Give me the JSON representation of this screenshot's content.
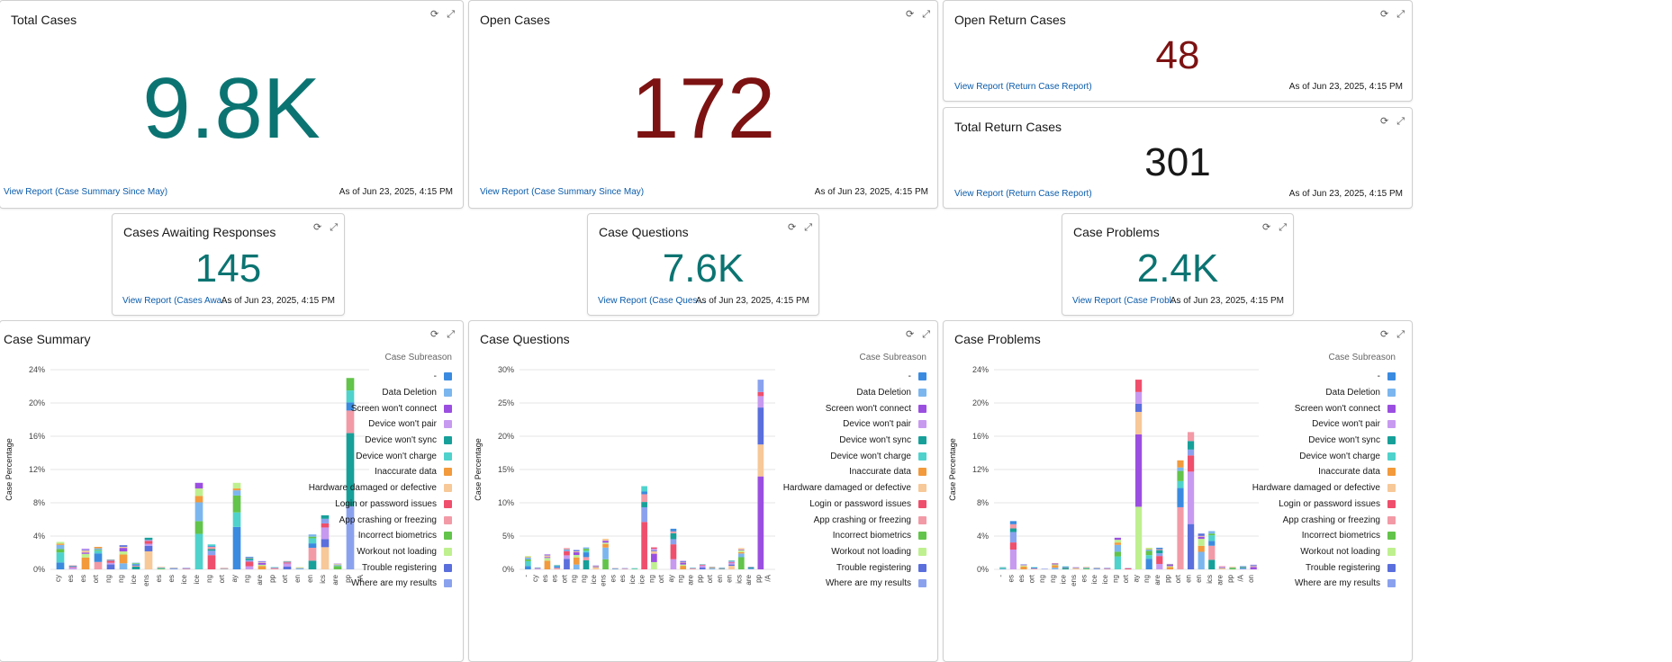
{
  "cards": {
    "total": {
      "title": "Total Cases",
      "value": "9.8K",
      "link": "View Report (Case Summary Since May)",
      "asof": "As of Jun 23, 2025, 4:15 PM"
    },
    "open": {
      "title": "Open Cases",
      "value": "172",
      "link": "View Report (Case Summary Since May)",
      "asof": "As of Jun 23, 2025, 4:15 PM"
    },
    "open_return": {
      "title": "Open Return Cases",
      "value": "48",
      "link": "View Report (Return Case Report)",
      "asof": "As of Jun 23, 2025, 4:15 PM"
    },
    "total_return": {
      "title": "Total Return Cases",
      "value": "301",
      "link": "View Report (Return Case Report)",
      "asof": "As of Jun 23, 2025, 4:15 PM"
    },
    "awaiting": {
      "title": "Cases Awaiting Responses",
      "value": "145",
      "link": "View Report (Cases Awaiting ...",
      "asof": "As of Jun 23, 2025, 4:15 PM"
    },
    "questions": {
      "title": "Case Questions",
      "value": "7.6K",
      "link": "View Report (Case Questions ...",
      "asof": "As of Jun 23, 2025, 4:15 PM"
    },
    "problems": {
      "title": "Case Problems",
      "value": "2.4K",
      "link": "View Report (Case Problems ...",
      "asof": "As of Jun 23, 2025, 4:15 PM"
    }
  },
  "icons": {
    "refresh": "refresh-icon",
    "expand": "expand-icon"
  },
  "colors": {
    "teal": "#0b7472",
    "darkred": "#7d1212",
    "black": "#181818",
    "link": "#0b5cab"
  },
  "legend": {
    "title": "Case Subreason",
    "items": [
      {
        "label": "-",
        "color": "#3a8be0"
      },
      {
        "label": "Data Deletion",
        "color": "#7cb6ee"
      },
      {
        "label": "Screen won't connect",
        "color": "#9b4fe0"
      },
      {
        "label": "Device won't pair",
        "color": "#c79af0"
      },
      {
        "label": "Device won't sync",
        "color": "#17a09a"
      },
      {
        "label": "Device won't charge",
        "color": "#4fd2cc"
      },
      {
        "label": "Inaccurate data",
        "color": "#f29a3c"
      },
      {
        "label": "Hardware damaged or defective",
        "color": "#f7c898"
      },
      {
        "label": "Login or password issues",
        "color": "#ef4f6c"
      },
      {
        "label": "App crashing or freezing",
        "color": "#f29aa6"
      },
      {
        "label": "Incorrect biometrics",
        "color": "#62c44a"
      },
      {
        "label": "Workout not loading",
        "color": "#bff08f"
      },
      {
        "label": "Trouble registering",
        "color": "#5a6fdc"
      },
      {
        "label": "Where are my results",
        "color": "#8aa2ee"
      }
    ]
  },
  "chart_data": [
    {
      "type": "bar",
      "title": "Case Summary",
      "ylabel": "Case Percentage",
      "ylim": [
        0,
        24
      ],
      "yticks": [
        "0%",
        "4%",
        "8%",
        "12%",
        "16%",
        "20%",
        "24%"
      ],
      "categories": [
        "cy",
        "es",
        "es",
        "ort",
        "ng",
        "ng",
        "ice",
        "ens",
        "es",
        "es",
        "ice",
        "ice",
        "ng",
        "ort",
        "ay",
        "ng",
        "are",
        "pp",
        "ort",
        "en",
        "en",
        "ics",
        "are",
        "pp",
        "/A"
      ],
      "totals": [
        3.3,
        0.5,
        2.5,
        2.7,
        1.2,
        2.9,
        0.8,
        3.8,
        0.3,
        0.2,
        0.2,
        10.4,
        3.0,
        0.2,
        10.4,
        1.5,
        1.0,
        0.3,
        1.0,
        0.3,
        4.2,
        6.5,
        0.7,
        23.0,
        0
      ]
    },
    {
      "type": "bar",
      "title": "Case Questions",
      "ylabel": "Case Percentage",
      "ylim": [
        0,
        30
      ],
      "yticks": [
        "0%",
        "5%",
        "10%",
        "15%",
        "20%",
        "25%",
        "30%"
      ],
      "categories": [
        "-",
        "cy",
        "es",
        "es",
        "ort",
        "ng",
        "ng",
        "ice",
        "ens",
        "es",
        "es",
        "ice",
        "ice",
        "ng",
        "ort",
        "ay",
        "ng",
        "are",
        "pp",
        "ort",
        "en",
        "en",
        "ics",
        "are",
        "pp",
        "/A"
      ],
      "totals": [
        2.0,
        0.3,
        2.3,
        0.7,
        3.2,
        2.9,
        3.3,
        0.6,
        4.6,
        0.2,
        0.2,
        0.2,
        12.5,
        3.3,
        0,
        6.1,
        1.3,
        0.3,
        0.8,
        0.4,
        0.3,
        1.3,
        3.2,
        0.4,
        28.5,
        0
      ]
    },
    {
      "type": "bar",
      "title": "Case Problems",
      "ylabel": "Case Percentage",
      "ylim": [
        0,
        24
      ],
      "yticks": [
        "0%",
        "4%",
        "8%",
        "12%",
        "16%",
        "20%",
        "24%"
      ],
      "categories": [
        "-",
        "es",
        "es",
        "ort",
        "ng",
        "ng",
        "ice",
        "ens",
        "es",
        "ice",
        "ice",
        "ng",
        "ort",
        "ay",
        "ng",
        "are",
        "pp",
        "ort",
        "en",
        "en",
        "ics",
        "are",
        "pp",
        "/A",
        "on"
      ],
      "totals": [
        0.3,
        5.8,
        0.6,
        0.3,
        0.1,
        0.8,
        0.4,
        0.3,
        0.3,
        0.2,
        0.2,
        3.8,
        0.2,
        22.8,
        2.6,
        2.6,
        0.7,
        13.1,
        16.5,
        4.3,
        4.6,
        0.4,
        0.3,
        0.4,
        0.6
      ]
    }
  ]
}
